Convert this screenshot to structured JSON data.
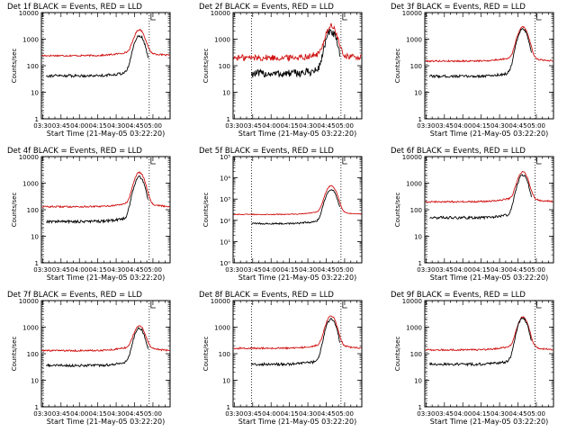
{
  "chart_data": [
    {
      "type": "line",
      "title": "Det 1f BLACK = Events, RED = LLD",
      "xlabel": "Start Time (21-May-05 03:22:20)",
      "ylabel": "Counts/sec",
      "x_tick_labels": [
        "03:30",
        "03:45",
        "04:00",
        "04:15",
        "04:30",
        "04:45",
        "05:00"
      ],
      "y_tick_labels": [
        "1",
        "10",
        "100",
        "1000",
        "10000"
      ],
      "y_scale": "log",
      "ylim": [
        1,
        10000
      ],
      "xlim_minutes": [
        -1,
        104
      ],
      "ymax_decade": 4,
      "red_base": 240,
      "red_peak": 2200,
      "black_base": 42,
      "black_peak": 1350,
      "red_noise": 0.03,
      "black_noise": 0.05,
      "dotted_minutes": [
        0.5,
        87
      ],
      "series": [
        {
          "name": "Events",
          "color": "#000000"
        },
        {
          "name": "LLD",
          "color": "#d01010"
        }
      ]
    },
    {
      "type": "line",
      "title": "Det 2f BLACK = Events, RED = LLD",
      "xlabel": "Start Time (21-May-05 03:22:20)",
      "ylabel": "Counts/sec",
      "x_tick_labels": [
        "03:30",
        "03:45",
        "04:00",
        "04:15",
        "04:30",
        "04:45",
        "05:00"
      ],
      "y_tick_labels": [
        "1",
        "10",
        "100",
        "1000",
        "10000"
      ],
      "y_scale": "log",
      "ylim": [
        1,
        10000
      ],
      "xlim_minutes": [
        -1,
        104
      ],
      "ymax_decade": 4,
      "red_base": 200,
      "red_peak": 3000,
      "black_base": 50,
      "black_peak": 1800,
      "red_noise": 0.12,
      "black_noise": 0.15,
      "dotted_minutes": [
        14,
        87
      ],
      "series": [
        {
          "name": "Events",
          "color": "#000000"
        },
        {
          "name": "LLD",
          "color": "#d01010"
        }
      ]
    },
    {
      "type": "line",
      "title": "Det 3f BLACK = Events, RED = LLD",
      "xlabel": "Start Time (21-May-05 03:22:20)",
      "ylabel": "Counts/sec",
      "x_tick_labels": [
        "03:30",
        "03:45",
        "04:00",
        "04:15",
        "04:30",
        "04:45",
        "05:00"
      ],
      "y_tick_labels": [
        "1",
        "10",
        "100",
        "1000",
        "10000"
      ],
      "y_scale": "log",
      "ylim": [
        1,
        10000
      ],
      "xlim_minutes": [
        -1,
        104
      ],
      "ymax_decade": 4,
      "red_base": 150,
      "red_peak": 2800,
      "black_base": 40,
      "black_peak": 2300,
      "red_noise": 0.03,
      "black_noise": 0.05,
      "dotted_minutes": [
        0.5,
        89
      ],
      "series": [
        {
          "name": "Events",
          "color": "#000000"
        },
        {
          "name": "LLD",
          "color": "#d01010"
        }
      ]
    },
    {
      "type": "line",
      "title": "Det 4f BLACK = Events, RED = LLD",
      "xlabel": "Start Time (21-May-05 03:22:20)",
      "ylabel": "Counts/sec",
      "x_tick_labels": [
        "03:30",
        "03:45",
        "04:00",
        "04:15",
        "04:30",
        "04:45",
        "05:00"
      ],
      "y_tick_labels": [
        "1",
        "10",
        "100",
        "1000",
        "10000"
      ],
      "y_scale": "log",
      "ylim": [
        1,
        10000
      ],
      "xlim_minutes": [
        -1,
        104
      ],
      "ymax_decade": 4,
      "red_base": 130,
      "red_peak": 2500,
      "black_base": 36,
      "black_peak": 1700,
      "red_noise": 0.03,
      "black_noise": 0.05,
      "dotted_minutes": [
        0.5,
        87
      ],
      "series": [
        {
          "name": "Events",
          "color": "#000000"
        },
        {
          "name": "LLD",
          "color": "#d01010"
        }
      ]
    },
    {
      "type": "line",
      "title": "Det 5f BLACK = Events, RED = LLD",
      "xlabel": "Start Time (21-May-05 03:22:20)",
      "ylabel": "Counts/sec",
      "x_tick_labels": [
        "03:30",
        "03:45",
        "04:00",
        "04:15",
        "04:30",
        "04:45",
        "05:00"
      ],
      "y_tick_labels": [
        "10⁰",
        "10¹",
        "10²",
        "10³",
        "10⁴",
        "10⁵"
      ],
      "y_scale": "log",
      "ylim": [
        1,
        100000
      ],
      "xlim_minutes": [
        -1,
        104
      ],
      "ymax_decade": 5,
      "red_base": 190,
      "red_peak": 4200,
      "black_base": 70,
      "black_peak": 2800,
      "red_noise": 0.02,
      "black_noise": 0.04,
      "dotted_minutes": [
        14,
        87
      ],
      "series": [
        {
          "name": "Events",
          "color": "#000000"
        },
        {
          "name": "LLD",
          "color": "#d01010"
        }
      ]
    },
    {
      "type": "line",
      "title": "Det 6f BLACK = Events, RED = LLD",
      "xlabel": "Start Time (21-May-05 03:22:20)",
      "ylabel": "Counts/sec",
      "x_tick_labels": [
        "03:30",
        "03:45",
        "04:00",
        "04:15",
        "04:30",
        "04:45",
        "05:00"
      ],
      "y_tick_labels": [
        "1",
        "10",
        "100",
        "1000",
        "10000"
      ],
      "y_scale": "log",
      "ylim": [
        1,
        10000
      ],
      "xlim_minutes": [
        -1,
        104
      ],
      "ymax_decade": 4,
      "red_base": 200,
      "red_peak": 2600,
      "black_base": 50,
      "black_peak": 2000,
      "red_noise": 0.03,
      "black_noise": 0.05,
      "dotted_minutes": [
        0.5,
        89
      ],
      "series": [
        {
          "name": "Events",
          "color": "#000000"
        },
        {
          "name": "LLD",
          "color": "#d01010"
        }
      ]
    },
    {
      "type": "line",
      "title": "Det 7f BLACK = Events, RED = LLD",
      "xlabel": "Start Time (21-May-05 03:22:20)",
      "ylabel": "Counts/sec",
      "x_tick_labels": [
        "03:30",
        "03:45",
        "04:00",
        "04:15",
        "04:30",
        "04:45",
        "05:00"
      ],
      "y_tick_labels": [
        "1",
        "10",
        "100",
        "1000",
        "10000"
      ],
      "y_scale": "log",
      "ylim": [
        1,
        10000
      ],
      "xlim_minutes": [
        -1,
        104
      ],
      "ymax_decade": 4,
      "red_base": 130,
      "red_peak": 1100,
      "black_base": 36,
      "black_peak": 900,
      "red_noise": 0.03,
      "black_noise": 0.05,
      "dotted_minutes": [
        0.5,
        87
      ],
      "series": [
        {
          "name": "Events",
          "color": "#000000"
        },
        {
          "name": "LLD",
          "color": "#d01010"
        }
      ]
    },
    {
      "type": "line",
      "title": "Det 8f BLACK = Events, RED = LLD",
      "xlabel": "Start Time (21-May-05 03:22:20)",
      "ylabel": "Counts/sec",
      "x_tick_labels": [
        "03:30",
        "03:45",
        "04:00",
        "04:15",
        "04:30",
        "04:45",
        "05:00"
      ],
      "y_tick_labels": [
        "1",
        "10",
        "100",
        "1000",
        "10000"
      ],
      "y_scale": "log",
      "ylim": [
        1,
        10000
      ],
      "xlim_minutes": [
        -1,
        104
      ],
      "ymax_decade": 4,
      "red_base": 160,
      "red_peak": 2600,
      "black_base": 40,
      "black_peak": 2000,
      "red_noise": 0.03,
      "black_noise": 0.05,
      "dotted_minutes": [
        14,
        87
      ],
      "series": [
        {
          "name": "Events",
          "color": "#000000"
        },
        {
          "name": "LLD",
          "color": "#d01010"
        }
      ]
    },
    {
      "type": "line",
      "title": "Det 9f BLACK = Events, RED = LLD",
      "xlabel": "Start Time (21-May-05 03:22:20)",
      "ylabel": "Counts/sec",
      "x_tick_labels": [
        "03:30",
        "03:45",
        "04:00",
        "04:15",
        "04:30",
        "04:45",
        "05:00"
      ],
      "y_tick_labels": [
        "1",
        "10",
        "100",
        "1000",
        "10000"
      ],
      "y_scale": "log",
      "ylim": [
        1,
        10000
      ],
      "xlim_minutes": [
        -1,
        104
      ],
      "ymax_decade": 4,
      "red_base": 140,
      "red_peak": 2300,
      "black_base": 40,
      "black_peak": 2100,
      "red_noise": 0.03,
      "black_noise": 0.05,
      "dotted_minutes": [
        0.5,
        89
      ],
      "series": [
        {
          "name": "Events",
          "color": "#000000"
        },
        {
          "name": "LLD",
          "color": "#d01010"
        }
      ]
    }
  ]
}
